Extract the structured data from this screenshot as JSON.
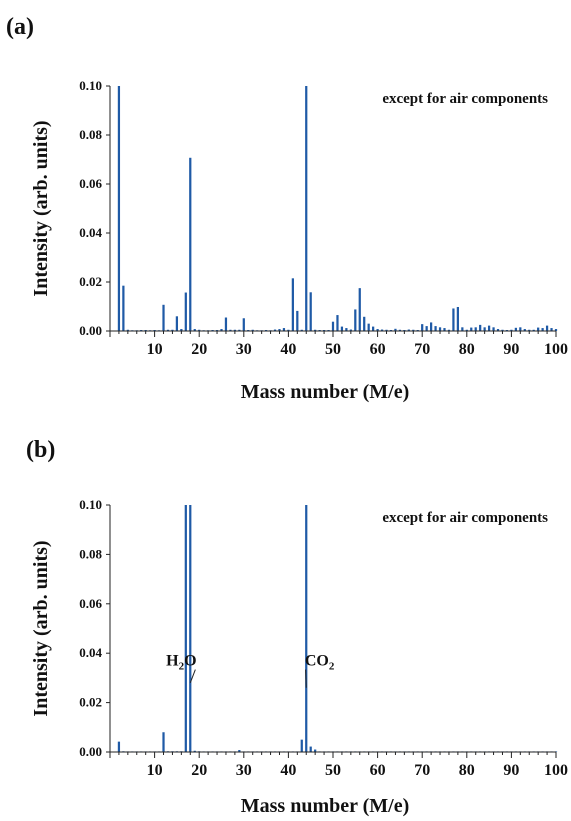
{
  "chart_data": [
    {
      "type": "bar",
      "panel_label": "(a)",
      "annotation": "except for air components",
      "xlabel": "Mass number (M/e)",
      "ylabel": "Intensity (arb. units)",
      "xlim": [
        0,
        100
      ],
      "ylim": [
        0,
        0.1
      ],
      "xticks": [
        10,
        20,
        30,
        40,
        50,
        60,
        70,
        80,
        90,
        100
      ],
      "yticks": [
        "0.00",
        "0.02",
        "0.04",
        "0.06",
        "0.08",
        "0.10"
      ],
      "bar_color": "#1f5aa6",
      "x": [
        2,
        3,
        4,
        5,
        6,
        7,
        8,
        9,
        10,
        11,
        12,
        13,
        14,
        15,
        16,
        17,
        18,
        19,
        20,
        21,
        22,
        23,
        24,
        25,
        26,
        27,
        28,
        29,
        30,
        31,
        32,
        33,
        34,
        35,
        36,
        37,
        38,
        39,
        40,
        41,
        42,
        43,
        44,
        45,
        46,
        47,
        48,
        49,
        50,
        51,
        52,
        53,
        54,
        55,
        56,
        57,
        58,
        59,
        60,
        61,
        62,
        63,
        64,
        65,
        66,
        67,
        68,
        69,
        70,
        71,
        72,
        73,
        74,
        75,
        76,
        77,
        78,
        79,
        80,
        81,
        82,
        83,
        84,
        85,
        86,
        87,
        88,
        89,
        90,
        91,
        92,
        93,
        94,
        95,
        96,
        97,
        98,
        99,
        100
      ],
      "values": [
        0.1,
        0.0185,
        0.0005,
        0.0003,
        0.0003,
        0.0004,
        0.0004,
        0.0003,
        0.0004,
        0.0003,
        0.0107,
        0.0005,
        0.0005,
        0.006,
        0.0008,
        0.0157,
        0.0707,
        0.0008,
        0.0005,
        0.0003,
        0.0003,
        0.0004,
        0.0004,
        0.0008,
        0.0055,
        0.0005,
        0.0005,
        0.0005,
        0.0052,
        0.0004,
        0.0005,
        0.0003,
        0.0003,
        0.0004,
        0.0003,
        0.0006,
        0.0008,
        0.0012,
        0.0005,
        0.0215,
        0.0082,
        0.0005,
        0.1,
        0.0158,
        0.0005,
        0.0004,
        0.0004,
        0.0004,
        0.0038,
        0.0065,
        0.0018,
        0.0012,
        0.0006,
        0.0088,
        0.0175,
        0.0058,
        0.003,
        0.0018,
        0.0008,
        0.0006,
        0.0005,
        0.0004,
        0.0009,
        0.0005,
        0.0004,
        0.0006,
        0.0005,
        0.0004,
        0.0028,
        0.002,
        0.0035,
        0.002,
        0.0015,
        0.0012,
        0.0005,
        0.0092,
        0.0098,
        0.0015,
        0.0005,
        0.0014,
        0.0015,
        0.0025,
        0.0015,
        0.0022,
        0.0015,
        0.0008,
        0.0005,
        0.0004,
        0.0005,
        0.0013,
        0.0015,
        0.0008,
        0.0005,
        0.0005,
        0.0014,
        0.0012,
        0.0022,
        0.0012,
        0.0008
      ]
    },
    {
      "type": "bar",
      "panel_label": "(b)",
      "annotation": "except for air components",
      "xlabel": "Mass number (M/e)",
      "ylabel": "Intensity (arb. units)",
      "xlim": [
        0,
        100
      ],
      "ylim": [
        0,
        0.1
      ],
      "xticks": [
        10,
        20,
        30,
        40,
        50,
        60,
        70,
        80,
        90,
        100
      ],
      "yticks": [
        "0.00",
        "0.02",
        "0.04",
        "0.06",
        "0.08",
        "0.10"
      ],
      "bar_color": "#1f5aa6",
      "x": [
        2,
        3,
        4,
        5,
        6,
        7,
        8,
        9,
        10,
        11,
        12,
        13,
        14,
        15,
        16,
        17,
        18,
        19,
        20,
        21,
        22,
        23,
        24,
        25,
        26,
        27,
        28,
        29,
        30,
        31,
        32,
        33,
        34,
        35,
        36,
        37,
        38,
        39,
        40,
        41,
        42,
        43,
        44,
        45,
        46,
        47,
        48,
        49,
        50,
        51,
        52,
        53,
        54,
        55,
        56,
        57,
        58,
        59,
        60,
        61,
        62,
        63,
        64,
        65,
        66,
        67,
        68,
        69,
        70,
        71,
        72,
        73,
        74,
        75,
        76,
        77,
        78,
        79,
        80,
        81,
        82,
        83,
        84,
        85,
        86,
        87,
        88,
        89,
        90,
        91,
        92,
        93,
        94,
        95,
        96,
        97,
        98,
        99,
        100
      ],
      "values": [
        0.0042,
        0.0003,
        0.0002,
        0.0002,
        0.0002,
        0.0002,
        0.0002,
        0.0002,
        0.0002,
        0.0002,
        0.008,
        0.0003,
        0.0003,
        0.0003,
        0.0003,
        0.1,
        0.1,
        0.0005,
        0.0003,
        0.0002,
        0.0002,
        0.0002,
        0.0002,
        0.0002,
        0.0002,
        0.0002,
        0.0002,
        0.0008,
        0.0002,
        0.0002,
        0.0002,
        0.0002,
        0.0002,
        0.0002,
        0.0002,
        0.0002,
        0.0002,
        0.0002,
        0.0002,
        0.0002,
        0.0002,
        0.005,
        0.1,
        0.0022,
        0.001,
        0.0002,
        0.0002,
        0.0002,
        0.0002,
        0.0002,
        0.0002,
        0.0002,
        0.0002,
        0.0002,
        0.0002,
        0.0002,
        0.0002,
        0.0002,
        0.0002,
        0.0002,
        0.0002,
        0.0002,
        0.0002,
        0.0002,
        0.0002,
        0.0002,
        0.0002,
        0.0002,
        0.0002,
        0.0002,
        0.0002,
        0.0002,
        0.0002,
        0.0002,
        0.0002,
        0.0002,
        0.0002,
        0.0002,
        0.0002,
        0.0002,
        0.0002,
        0.0002,
        0.0002,
        0.0002,
        0.0002,
        0.0002,
        0.0002,
        0.0002,
        0.0002,
        0.0002,
        0.0002,
        0.0002,
        0.0002,
        0.0002,
        0.0002,
        0.0002,
        0.0002,
        0.0002,
        0.0002
      ],
      "labels": [
        {
          "text": "H",
          "sub": "2",
          "text_after": "O",
          "points_to_x": 18,
          "points_to_y": 0.028,
          "anchor_x": 16,
          "anchor_y": 0.035
        },
        {
          "text": "CO",
          "sub": "2",
          "text_after": "",
          "points_to_x": 44,
          "points_to_y": 0.026,
          "anchor_x": 47,
          "anchor_y": 0.035
        }
      ]
    }
  ]
}
